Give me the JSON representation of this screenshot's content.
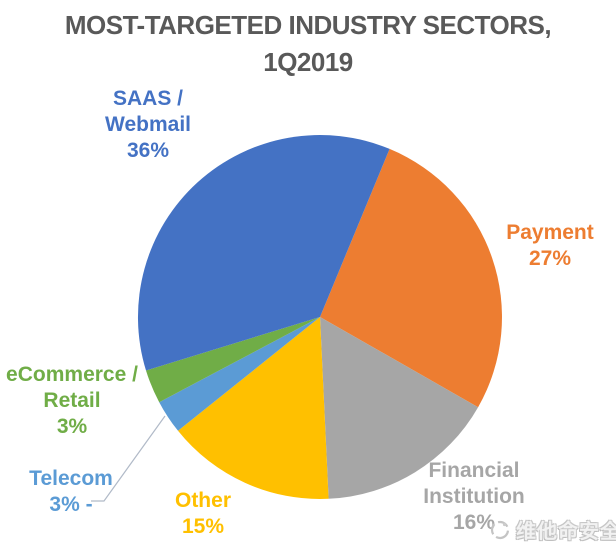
{
  "title": {
    "line1": "MOST-TARGETED INDUSTRY SECTORS,",
    "line2": "1Q2019",
    "color": "#595959"
  },
  "chart_data": {
    "type": "pie",
    "title": "MOST-TARGETED INDUSTRY SECTORS, 1Q2019",
    "unit": "percent",
    "start_angle_deg": 22.5,
    "direction": "clockwise",
    "legend": "none",
    "data_labels": "outside, colored to match slices, leader line on Telecom",
    "slices": [
      {
        "label": "Payment",
        "value": 27,
        "color": "#ED7D31"
      },
      {
        "label": "Financial Institution",
        "value": 16,
        "color": "#A6A6A6"
      },
      {
        "label": "Other",
        "value": 15,
        "color": "#FFC000"
      },
      {
        "label": "Telecom",
        "value": 3,
        "color": "#5B9BD5"
      },
      {
        "label": "eCommerce / Retail",
        "value": 3,
        "color": "#70AD47"
      },
      {
        "label": "SAAS / Webmail",
        "value": 36,
        "color": "#4472C4"
      }
    ]
  },
  "callouts": {
    "saas": {
      "text": "SAAS /\nWebmail\n36%",
      "color": "#4472C4"
    },
    "payment": {
      "text": "Payment\n27%",
      "color": "#ED7D31"
    },
    "financial": {
      "text": "Financial\nInstitution\n16%",
      "color": "#A6A6A6"
    },
    "other": {
      "text": "Other\n15%",
      "color": "#FFC000"
    },
    "telecom": {
      "text": "Telecom\n3% -",
      "color": "#5B9BD5"
    },
    "ecommerce": {
      "text": "eCommerce /\nRetail\n3%",
      "color": "#70AD47"
    }
  },
  "watermark": {
    "text": "维他命安全"
  }
}
